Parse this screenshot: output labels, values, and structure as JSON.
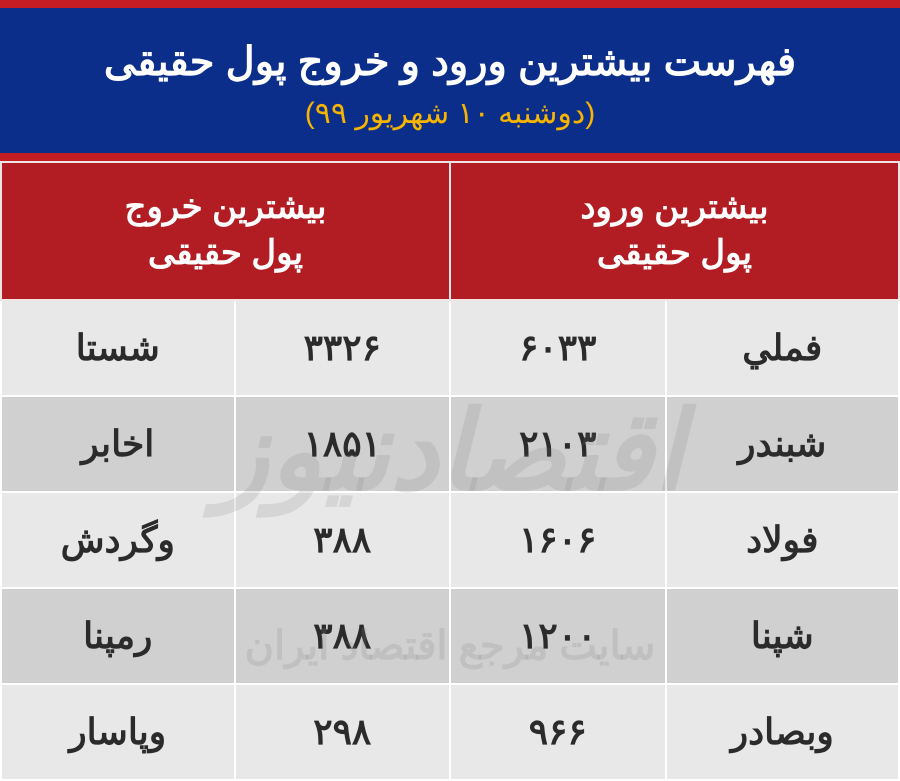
{
  "header": {
    "title": "فهرست بیشترین ورود و خروج پول حقیقی",
    "subtitle": "(دوشنبه ۱۰ شهریور ۹۹)"
  },
  "columns": {
    "inflow_header_line1": "بیشترین ورود",
    "inflow_header_line2": "پول حقیقی",
    "outflow_header_line1": "بیشترین خروج",
    "outflow_header_line2": "پول حقیقی"
  },
  "rows": [
    {
      "in_name": "فملي",
      "in_val": "۶۰۳۳",
      "out_val": "۳۳۲۶",
      "out_name": "شستا"
    },
    {
      "in_name": "شبندر",
      "in_val": "۲۱۰۳",
      "out_val": "۱۸۵۱",
      "out_name": "اخابر"
    },
    {
      "in_name": "فولاد",
      "in_val": "۱۶۰۶",
      "out_val": "۳۸۸",
      "out_name": "وگردش"
    },
    {
      "in_name": "شپنا",
      "in_val": "۱۲۰۰",
      "out_val": "۳۸۸",
      "out_name": "رمپنا"
    },
    {
      "in_name": "وبصادر",
      "in_val": "۹۶۶",
      "out_val": "۲۹۸",
      "out_name": "وپاسار"
    }
  ],
  "watermark": {
    "main": "اقتصادنیوز",
    "sub": "سایت مرجع اقتصاد ایران"
  },
  "style": {
    "title_bg": "#0b2e8a",
    "accent_border": "#c41e24",
    "header_bg": "#b11d23",
    "row_odd_bg": "#e8e8e8",
    "row_even_bg": "#d0d0d0",
    "title_color": "#ffffff",
    "subtitle_color": "#f7b400",
    "text_color": "#2b2b2b",
    "title_fontsize": 40,
    "subtitle_fontsize": 30,
    "th_fontsize": 34,
    "td_fontsize": 36
  }
}
